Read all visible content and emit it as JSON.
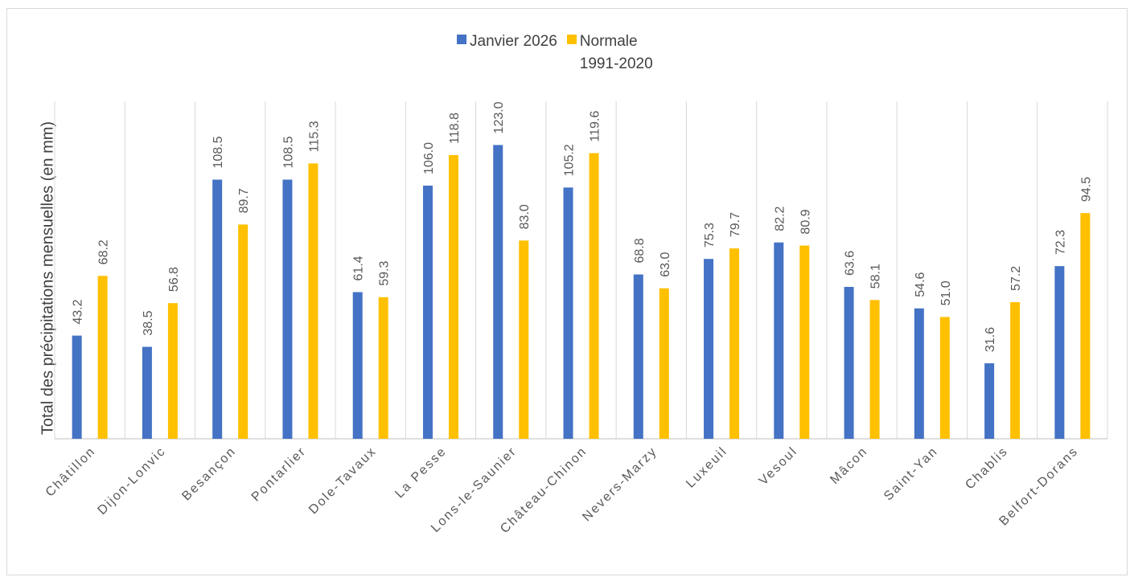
{
  "chart_data": {
    "type": "bar",
    "title": "",
    "xlabel": "",
    "ylabel": "Total des précipitations mensuelles (en mm)",
    "ylim": [
      0,
      130
    ],
    "grid": "vertical category separators",
    "legend_position": "top",
    "categories": [
      "Châtillon",
      "Dijon-Lonvic",
      "Besançon",
      "Pontarlier",
      "Dole-Tavaux",
      "La Pesse",
      "Lons-le-Saunier",
      "Château-Chinon",
      "Nevers-Marzy",
      "Luxeuil",
      "Vesoul",
      "Mâcon",
      "Saint-Yan",
      "Chablis",
      "Belfort-Dorans"
    ],
    "series": [
      {
        "name": "Janvier 2026",
        "color": "#4472c4",
        "values": [
          43.2,
          38.5,
          108.5,
          108.5,
          61.4,
          106.0,
          123.0,
          105.2,
          68.8,
          75.3,
          82.2,
          63.6,
          54.6,
          31.6,
          72.3
        ],
        "labels": [
          "43.2",
          "38.5",
          "108.5",
          "108.5",
          "61.4",
          "106.0",
          "123.0",
          "105.2",
          "68.8",
          "75.3",
          "82.2",
          "63.6",
          "54.6",
          "31.6",
          "72.3"
        ]
      },
      {
        "name": "Normale 1991-2020",
        "color": "#ffc000",
        "values": [
          68.2,
          56.8,
          89.7,
          115.3,
          59.3,
          118.8,
          83.0,
          119.6,
          63.0,
          79.7,
          80.9,
          58.1,
          51.0,
          57.2,
          94.5
        ],
        "labels": [
          "68.2",
          "56.8",
          "89.7",
          "115.3",
          "59.3",
          "118.8",
          "83.0",
          "119.6",
          "63.0",
          "79.7",
          "80.9",
          "58.1",
          "51.0",
          "57.2",
          "94.5"
        ]
      }
    ]
  }
}
